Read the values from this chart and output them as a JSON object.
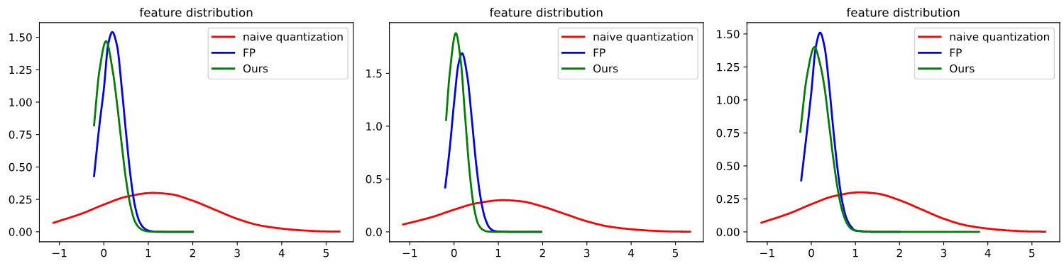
{
  "chart_data": [
    {
      "type": "line",
      "title": "feature distribution",
      "legend": "upper right",
      "grid": false,
      "xlim": [
        -1.45,
        5.61
      ],
      "ylim": [
        -0.077,
        1.613
      ],
      "xticks": [
        -1,
        0,
        1,
        2,
        3,
        4,
        5
      ],
      "yticks": [
        {
          "value": 0,
          "label": "0.00"
        },
        {
          "value": 0.25,
          "label": "0.25"
        },
        {
          "value": 0.5,
          "label": "0.50"
        },
        {
          "value": 0.75,
          "label": "0.75"
        },
        {
          "value": 1,
          "label": "1.00"
        },
        {
          "value": 1.25,
          "label": "1.25"
        },
        {
          "value": 1.5,
          "label": "1.50"
        }
      ],
      "series": [
        {
          "name": "naive quantization",
          "color": "#ff0000",
          "x": [
            -1.13,
            -0.5,
            0,
            0.5,
            1.1,
            1.5,
            2,
            2.5,
            3,
            3.5,
            4,
            4.5,
            5,
            5.3
          ],
          "values": [
            0.07,
            0.14,
            0.21,
            0.27,
            0.3,
            0.29,
            0.24,
            0.17,
            0.1,
            0.05,
            0.025,
            0.01,
            0.003,
            0.002
          ]
        },
        {
          "name": "FP",
          "color": "#0000ff",
          "x": [
            -0.22,
            -0.1,
            0,
            0.1,
            0.19,
            0.3,
            0.4,
            0.5,
            0.6,
            0.7,
            0.8,
            0.9,
            1.0,
            1.2,
            1.5,
            2.0
          ],
          "values": [
            0.43,
            0.82,
            1.1,
            1.45,
            1.54,
            1.43,
            1.12,
            0.76,
            0.43,
            0.2,
            0.08,
            0.03,
            0.01,
            0,
            0,
            0
          ]
        },
        {
          "name": "Ours",
          "color": "#008000",
          "x": [
            -0.22,
            -0.1,
            0.05,
            0.2,
            0.3,
            0.4,
            0.5,
            0.6,
            0.7,
            0.8,
            0.9,
            1.0,
            1.5,
            2.0
          ],
          "values": [
            0.82,
            1.24,
            1.47,
            1.24,
            0.98,
            0.68,
            0.4,
            0.2,
            0.08,
            0.03,
            0.01,
            0.003,
            0,
            0
          ]
        }
      ]
    },
    {
      "type": "line",
      "title": "feature distribution",
      "legend": "upper right",
      "grid": false,
      "xlim": [
        -1.46,
        5.63
      ],
      "ylim": [
        -0.094,
        1.98
      ],
      "xticks": [
        -1,
        0,
        1,
        2,
        3,
        4,
        5
      ],
      "yticks": [
        {
          "value": 0,
          "label": "0.0"
        },
        0.5,
        {
          "value": 1,
          "label": "1.0"
        },
        1.5
      ],
      "series": [
        {
          "name": "naive quantization",
          "color": "#ff0000",
          "x": [
            -1.15,
            -0.5,
            0,
            0.5,
            1.1,
            1.5,
            2,
            2.5,
            3,
            3.5,
            4,
            4.5,
            5,
            5.33
          ],
          "values": [
            0.07,
            0.14,
            0.21,
            0.27,
            0.3,
            0.29,
            0.24,
            0.17,
            0.1,
            0.05,
            0.025,
            0.01,
            0.003,
            0.002
          ]
        },
        {
          "name": "FP",
          "color": "#0000ff",
          "x": [
            -0.2,
            -0.1,
            0,
            0.1,
            0.18,
            0.3,
            0.4,
            0.5,
            0.6,
            0.7,
            0.8,
            0.9,
            1.0,
            1.5,
            1.97
          ],
          "values": [
            0.42,
            0.78,
            1.22,
            1.59,
            1.69,
            1.47,
            1.07,
            0.64,
            0.32,
            0.13,
            0.04,
            0.01,
            0.003,
            0,
            0
          ]
        },
        {
          "name": "Ours",
          "color": "#008000",
          "x": [
            -0.18,
            -0.1,
            0.04,
            0.15,
            0.25,
            0.35,
            0.45,
            0.55,
            0.65,
            0.75,
            1.0,
            1.5,
            1.97
          ],
          "values": [
            1.06,
            1.49,
            1.88,
            1.62,
            1.09,
            0.57,
            0.23,
            0.07,
            0.02,
            0.004,
            0,
            0,
            0
          ]
        }
      ]
    },
    {
      "type": "line",
      "title": "feature distribution",
      "legend": "upper right",
      "grid": false,
      "xlim": [
        -1.46,
        5.63
      ],
      "ylim": [
        -0.075,
        1.586
      ],
      "xticks": [
        -1,
        0,
        1,
        2,
        3,
        4,
        5
      ],
      "yticks": [
        {
          "value": 0,
          "label": "0.00"
        },
        {
          "value": 0.25,
          "label": "0.25"
        },
        {
          "value": 0.5,
          "label": "0.50"
        },
        {
          "value": 0.75,
          "label": "0.75"
        },
        {
          "value": 1,
          "label": "1.00"
        },
        {
          "value": 1.25,
          "label": "1.25"
        },
        {
          "value": 1.5,
          "label": "1.50"
        }
      ],
      "series": [
        {
          "name": "naive quantization",
          "color": "#ff0000",
          "x": [
            -1.13,
            -0.5,
            0,
            0.5,
            1.1,
            1.5,
            2,
            2.5,
            3,
            3.5,
            4,
            4.5,
            5,
            5.3
          ],
          "values": [
            0.07,
            0.14,
            0.21,
            0.27,
            0.3,
            0.29,
            0.24,
            0.17,
            0.1,
            0.05,
            0.025,
            0.01,
            0.003,
            0.002
          ]
        },
        {
          "name": "FP",
          "color": "#0000ff",
          "x": [
            -0.23,
            -0.1,
            0,
            0.1,
            0.2,
            0.3,
            0.4,
            0.5,
            0.6,
            0.7,
            0.8,
            0.9,
            1.0,
            1.5,
            2.0
          ],
          "values": [
            0.39,
            0.76,
            1.06,
            1.4,
            1.51,
            1.4,
            1.12,
            0.77,
            0.46,
            0.23,
            0.1,
            0.04,
            0.01,
            0,
            0
          ]
        },
        {
          "name": "Ours",
          "color": "#008000",
          "x": [
            -0.25,
            -0.1,
            0.07,
            0.2,
            0.3,
            0.4,
            0.5,
            0.6,
            0.7,
            0.8,
            0.9,
            1.0,
            1.5,
            2.5,
            3.8
          ],
          "values": [
            0.76,
            1.18,
            1.4,
            1.27,
            1.09,
            0.82,
            0.55,
            0.32,
            0.16,
            0.07,
            0.025,
            0.01,
            0,
            0,
            0
          ]
        }
      ]
    }
  ]
}
